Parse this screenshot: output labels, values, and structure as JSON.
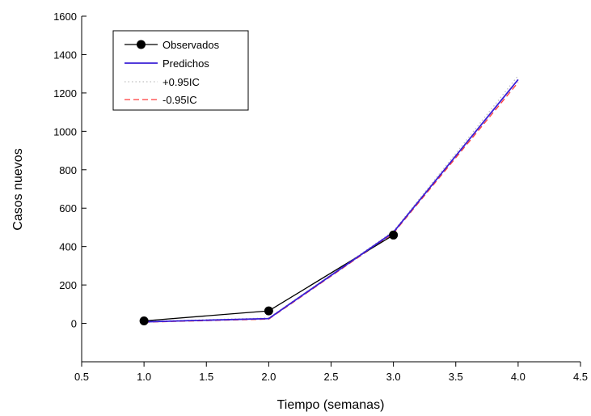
{
  "chart_data": {
    "type": "line",
    "title": "",
    "xlabel": "Tiempo (semanas)",
    "ylabel": "Casos nuevos",
    "xlim": [
      0.5,
      4.5
    ],
    "ylim": [
      -200,
      1600
    ],
    "xticks": [
      0.5,
      1.0,
      1.5,
      2.0,
      2.5,
      3.0,
      3.5,
      4.0,
      4.5
    ],
    "xtick_labels": [
      "0.5",
      "1.0",
      "1.5",
      "2.0",
      "2.5",
      "3.0",
      "3.5",
      "4.0",
      "4.5"
    ],
    "yticks": [
      0,
      200,
      400,
      600,
      800,
      1000,
      1200,
      1400,
      1600
    ],
    "ytick_labels": [
      "0",
      "200",
      "400",
      "600",
      "800",
      "1000",
      "1200",
      "1400",
      "1600"
    ],
    "grid": false,
    "legend_position": "top-left",
    "series": [
      {
        "name": "Observados",
        "x": [
          1.0,
          2.0,
          3.0
        ],
        "y": [
          13,
          65,
          460
        ],
        "color": "#000000",
        "style": "solid-markers"
      },
      {
        "name": "Predichos",
        "x": [
          1.0,
          2.0,
          3.0,
          4.0
        ],
        "y": [
          8,
          25,
          475,
          1270
        ],
        "color": "#3a1fd6",
        "style": "solid"
      },
      {
        "name": "+0.95IC",
        "x": [
          1.0,
          2.0,
          3.0,
          4.0
        ],
        "y": [
          10,
          28,
          480,
          1290
        ],
        "color": "#bfbfbf",
        "style": "dotted"
      },
      {
        "name": "-0.95IC",
        "x": [
          1.0,
          2.0,
          3.0,
          4.0
        ],
        "y": [
          6,
          22,
          470,
          1255
        ],
        "color": "#ff3b3b",
        "style": "dashed"
      }
    ]
  }
}
